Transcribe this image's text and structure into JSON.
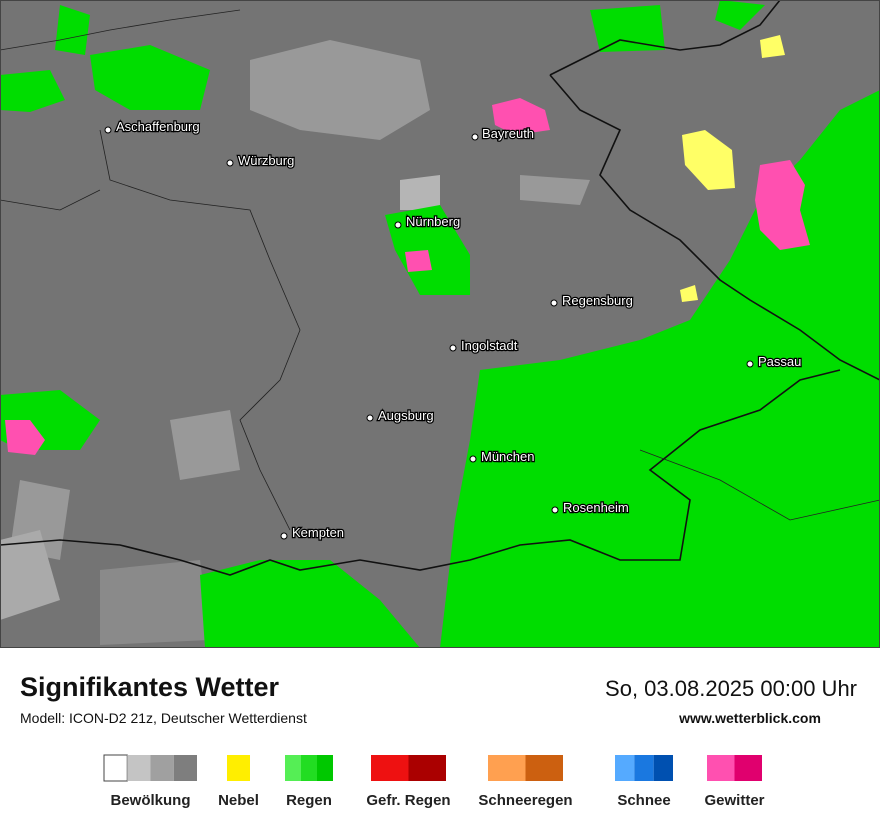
{
  "map": {
    "cities": [
      "Aschaffenburg",
      "Würzburg",
      "Bayreuth",
      "Nürnberg",
      "Regensburg",
      "Ingolstadt",
      "Passau",
      "Augsburg",
      "München",
      "Rosenheim",
      "Kempten"
    ]
  },
  "footer": {
    "title": "Signifikantes Wetter",
    "subtitle": "Modell: ICON-D2 21z, Deutscher Wetterdienst",
    "datetime": "So, 03.08.2025 00:00 Uhr",
    "website": "www.wetterblick.com"
  },
  "legend": [
    {
      "label": "Bewölkung",
      "colors": [
        "#ffffff",
        "#c4c4c4",
        "#a0a0a0",
        "#7e7e7e"
      ]
    },
    {
      "label": "Nebel",
      "colors": [
        "#ffee00"
      ]
    },
    {
      "label": "Regen",
      "colors": [
        "#55ee55",
        "#22dd22",
        "#00c800"
      ]
    },
    {
      "label": "Gefr. Regen",
      "colors": [
        "#ee1111",
        "#aa0000"
      ]
    },
    {
      "label": "Schneeregen",
      "colors": [
        "#ffa050",
        "#cc6010"
      ]
    },
    {
      "label": "Schnee",
      "colors": [
        "#55aaff",
        "#1a78e0",
        "#0050b0"
      ]
    },
    {
      "label": "Gewitter",
      "colors": [
        "#ff50b0",
        "#e0006e"
      ]
    }
  ]
}
